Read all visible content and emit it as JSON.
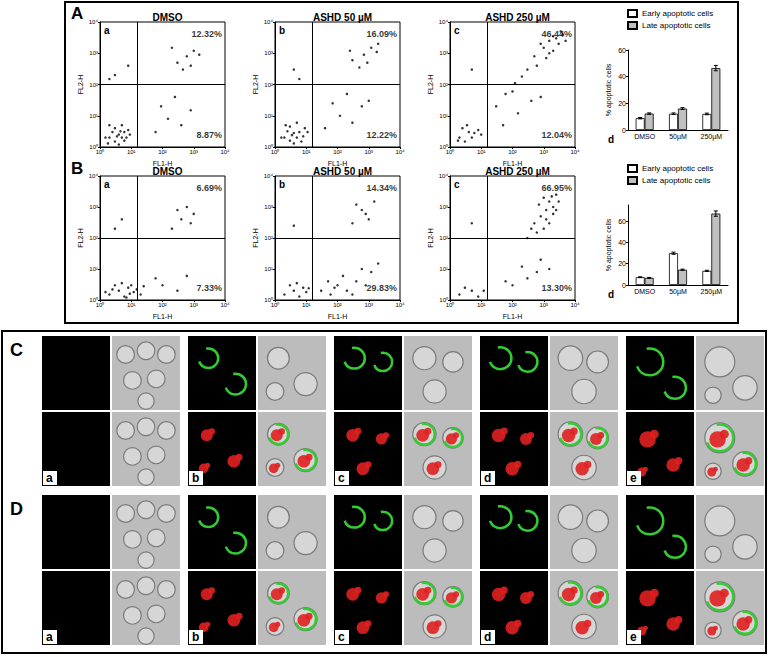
{
  "chart_data": [
    {
      "type": "scatter",
      "title": "DMSO",
      "panel_label": "a",
      "x_label": "FL1-H",
      "y_label": "FL2-H",
      "log": true,
      "xlim": [
        1,
        10000
      ],
      "ylim": [
        1,
        10000
      ],
      "xticks": [
        {
          "value": 1,
          "label": "10⁰"
        },
        {
          "value": 10,
          "label": "10¹"
        },
        {
          "value": 100,
          "label": "10²"
        },
        {
          "value": 1000,
          "label": "10³"
        },
        {
          "value": 10000,
          "label": "10⁴"
        }
      ],
      "yticks": [
        {
          "value": 1,
          "label": "10⁰"
        },
        {
          "value": 10,
          "label": "10¹"
        },
        {
          "value": 100,
          "label": "10²"
        },
        {
          "value": 1000,
          "label": "10³"
        },
        {
          "value": 10000,
          "label": "10⁴"
        }
      ],
      "gates": {
        "x": 15,
        "y": 100
      },
      "color": "#000000",
      "marker": "dot",
      "points": [
        [
          2,
          2
        ],
        [
          3,
          1.5
        ],
        [
          4,
          2.5
        ],
        [
          2.5,
          3
        ],
        [
          5,
          2
        ],
        [
          3,
          4
        ],
        [
          6,
          3
        ],
        [
          1.5,
          2
        ],
        [
          4,
          1.2
        ],
        [
          7,
          2
        ],
        [
          3.5,
          2.2
        ],
        [
          2,
          5
        ],
        [
          5,
          5
        ],
        [
          8,
          3.5
        ],
        [
          1.8,
          1.3
        ],
        [
          6,
          1.6
        ],
        [
          4.5,
          3.2
        ],
        [
          9,
          2.5
        ],
        [
          60,
          3
        ],
        [
          150,
          8
        ],
        [
          400,
          5
        ],
        [
          90,
          20
        ],
        [
          800,
          15
        ],
        [
          250,
          40
        ],
        [
          3,
          200
        ],
        [
          8,
          400
        ],
        [
          2,
          150
        ],
        [
          300,
          500
        ],
        [
          600,
          800
        ],
        [
          1000,
          1200
        ],
        [
          450,
          300
        ],
        [
          1500,
          900
        ],
        [
          200,
          1500
        ],
        [
          800,
          400
        ]
      ],
      "annotations": [
        {
          "text": "12.32%",
          "x": 8000,
          "y": 4000
        },
        {
          "text": "8.87%",
          "x": 8000,
          "y": 2.5
        }
      ]
    },
    {
      "type": "scatter",
      "title": "ASHD 50 µM",
      "panel_label": "b",
      "x_label": "FL1-H",
      "y_label": "FL2-H",
      "log": true,
      "xlim": [
        1,
        10000
      ],
      "ylim": [
        1,
        10000
      ],
      "xticks": [
        {
          "value": 1,
          "label": "10⁰"
        },
        {
          "value": 10,
          "label": "10¹"
        },
        {
          "value": 100,
          "label": "10²"
        },
        {
          "value": 1000,
          "label": "10³"
        },
        {
          "value": 10000,
          "label": "10⁴"
        }
      ],
      "yticks": [
        {
          "value": 1,
          "label": "10⁰"
        },
        {
          "value": 10,
          "label": "10¹"
        },
        {
          "value": 100,
          "label": "10²"
        },
        {
          "value": 1000,
          "label": "10³"
        },
        {
          "value": 10000,
          "label": "10⁴"
        }
      ],
      "gates": {
        "x": 15,
        "y": 100
      },
      "color": "#000000",
      "marker": "dot",
      "points": [
        [
          2,
          2
        ],
        [
          3,
          1.6
        ],
        [
          4,
          2.8
        ],
        [
          2.5,
          3.2
        ],
        [
          5,
          2
        ],
        [
          3,
          4.5
        ],
        [
          6,
          3
        ],
        [
          1.6,
          2
        ],
        [
          4,
          1.3
        ],
        [
          8,
          2.2
        ],
        [
          3.5,
          2.4
        ],
        [
          2.2,
          5
        ],
        [
          5,
          6
        ],
        [
          9,
          4
        ],
        [
          7,
          1.5
        ],
        [
          11,
          3
        ],
        [
          40,
          4
        ],
        [
          120,
          10
        ],
        [
          300,
          6
        ],
        [
          70,
          25
        ],
        [
          600,
          20
        ],
        [
          200,
          50
        ],
        [
          1000,
          30
        ],
        [
          4,
          300
        ],
        [
          6,
          150
        ],
        [
          300,
          600
        ],
        [
          700,
          900
        ],
        [
          1200,
          1500
        ],
        [
          500,
          350
        ],
        [
          1800,
          1100
        ],
        [
          250,
          1200
        ],
        [
          900,
          500
        ],
        [
          2000,
          2000
        ]
      ],
      "annotations": [
        {
          "text": "16.09%",
          "x": 8000,
          "y": 4000
        },
        {
          "text": "12.22%",
          "x": 8000,
          "y": 2.5
        }
      ]
    },
    {
      "type": "scatter",
      "title": "ASHD 250 µM",
      "panel_label": "c",
      "x_label": "FL1-H",
      "y_label": "FL2-H",
      "log": true,
      "xlim": [
        1,
        10000
      ],
      "ylim": [
        1,
        10000
      ],
      "xticks": [
        {
          "value": 1,
          "label": "10⁰"
        },
        {
          "value": 10,
          "label": "10¹"
        },
        {
          "value": 100,
          "label": "10²"
        },
        {
          "value": 1000,
          "label": "10³"
        },
        {
          "value": 10000,
          "label": "10⁴"
        }
      ],
      "yticks": [
        {
          "value": 1,
          "label": "10⁰"
        },
        {
          "value": 10,
          "label": "10¹"
        },
        {
          "value": 100,
          "label": "10²"
        },
        {
          "value": 1000,
          "label": "10³"
        },
        {
          "value": 10000,
          "label": "10⁴"
        }
      ],
      "gates": {
        "x": 15,
        "y": 100
      },
      "color": "#000000",
      "marker": "dot",
      "points": [
        [
          2,
          2
        ],
        [
          3,
          1.5
        ],
        [
          4,
          3
        ],
        [
          5,
          2
        ],
        [
          2.5,
          4
        ],
        [
          6,
          2.8
        ],
        [
          1.8,
          1.6
        ],
        [
          8,
          3.5
        ],
        [
          3.5,
          5
        ],
        [
          10,
          2.5
        ],
        [
          50,
          5
        ],
        [
          150,
          12
        ],
        [
          400,
          30
        ],
        [
          100,
          60
        ],
        [
          800,
          40
        ],
        [
          30,
          20
        ],
        [
          60,
          50
        ],
        [
          120,
          110
        ],
        [
          200,
          180
        ],
        [
          5,
          300
        ],
        [
          500,
          800
        ],
        [
          1000,
          1500
        ],
        [
          1500,
          2500
        ],
        [
          2500,
          3000
        ],
        [
          3000,
          2000
        ],
        [
          2000,
          1200
        ],
        [
          800,
          2000
        ],
        [
          4000,
          4000
        ],
        [
          1200,
          700
        ],
        [
          600,
          400
        ],
        [
          3500,
          5000
        ],
        [
          2000,
          3500
        ],
        [
          5000,
          2500
        ],
        [
          300,
          300
        ],
        [
          1500,
          1000
        ]
      ],
      "annotations": [
        {
          "text": "46.44%",
          "x": 8000,
          "y": 4000
        },
        {
          "text": "12.04%",
          "x": 8000,
          "y": 2.5
        }
      ]
    },
    {
      "type": "bar",
      "panel_label": "d",
      "y_label": "% apoptotic cells",
      "categories": [
        "DMSO",
        "50µM",
        "250µM"
      ],
      "series": [
        {
          "name": "Early apoptotic cells",
          "color": "#ffffff",
          "values": [
            8.87,
            12.22,
            12.04
          ],
          "errors": [
            0.5,
            0.6,
            0.6
          ]
        },
        {
          "name": "Late apoptotic cells",
          "color": "#c0c0c0",
          "values": [
            12.32,
            16.09,
            46.44
          ],
          "errors": [
            0.5,
            0.7,
            2.0
          ]
        }
      ],
      "ylim": [
        0,
        60
      ],
      "yticks": [
        0,
        20,
        40,
        60
      ],
      "legend": "top"
    },
    {
      "type": "scatter",
      "title": "DMSO",
      "panel_label": "a",
      "x_label": "FL1-H",
      "y_label": "FL2-H",
      "log": true,
      "xlim": [
        1,
        10000
      ],
      "ylim": [
        1,
        10000
      ],
      "xticks": [
        {
          "value": 1,
          "label": "10⁰"
        },
        {
          "value": 10,
          "label": "10¹"
        },
        {
          "value": 100,
          "label": "10²"
        },
        {
          "value": 1000,
          "label": "10³"
        },
        {
          "value": 10000,
          "label": "10⁴"
        }
      ],
      "yticks": [
        {
          "value": 1,
          "label": "10⁰"
        },
        {
          "value": 10,
          "label": "10¹"
        },
        {
          "value": 100,
          "label": "10²"
        },
        {
          "value": 1000,
          "label": "10³"
        },
        {
          "value": 10000,
          "label": "10⁴"
        }
      ],
      "gates": {
        "x": 15,
        "y": 100
      },
      "color": "#000000",
      "marker": "dot",
      "points": [
        [
          2,
          1.5
        ],
        [
          4,
          2
        ],
        [
          6,
          1.3
        ],
        [
          8,
          2.5
        ],
        [
          3,
          3
        ],
        [
          12,
          1.8
        ],
        [
          5,
          3.5
        ],
        [
          15,
          2.2
        ],
        [
          2.5,
          2.2
        ],
        [
          10,
          3
        ],
        [
          20,
          1.5
        ],
        [
          7,
          1.2
        ],
        [
          25,
          2.8
        ],
        [
          1.5,
          1.8
        ],
        [
          9,
          1.6
        ],
        [
          100,
          3
        ],
        [
          300,
          2
        ],
        [
          60,
          5
        ],
        [
          600,
          6
        ],
        [
          3,
          200
        ],
        [
          5,
          400
        ],
        [
          200,
          200
        ],
        [
          400,
          400
        ],
        [
          800,
          300
        ],
        [
          300,
          800
        ],
        [
          1000,
          600
        ],
        [
          600,
          1000
        ]
      ],
      "annotations": [
        {
          "text": "6.69%",
          "x": 8000,
          "y": 4000
        },
        {
          "text": "7.33%",
          "x": 8000,
          "y": 2.5
        }
      ]
    },
    {
      "type": "scatter",
      "title": "ASHD 50 µM",
      "panel_label": "b",
      "x_label": "FL1-H",
      "y_label": "FL2-H",
      "log": true,
      "xlim": [
        1,
        10000
      ],
      "ylim": [
        1,
        10000
      ],
      "xticks": [
        {
          "value": 1,
          "label": "10⁰"
        },
        {
          "value": 10,
          "label": "10¹"
        },
        {
          "value": 100,
          "label": "10²"
        },
        {
          "value": 1000,
          "label": "10³"
        },
        {
          "value": 10000,
          "label": "10⁴"
        }
      ],
      "yticks": [
        {
          "value": 1,
          "label": "10⁰"
        },
        {
          "value": 10,
          "label": "10¹"
        },
        {
          "value": 100,
          "label": "10²"
        },
        {
          "value": 1000,
          "label": "10³"
        },
        {
          "value": 10000,
          "label": "10⁴"
        }
      ],
      "gates": {
        "x": 15,
        "y": 100
      },
      "color": "#000000",
      "marker": "dot",
      "points": [
        [
          2,
          1.5
        ],
        [
          4,
          2
        ],
        [
          6,
          1.3
        ],
        [
          8,
          2.5
        ],
        [
          3,
          3
        ],
        [
          10,
          1.8
        ],
        [
          5,
          3.5
        ],
        [
          12,
          2.4
        ],
        [
          30,
          2
        ],
        [
          60,
          1.5
        ],
        [
          100,
          3
        ],
        [
          200,
          2
        ],
        [
          400,
          4
        ],
        [
          800,
          3
        ],
        [
          150,
          6
        ],
        [
          300,
          1.5
        ],
        [
          50,
          4
        ],
        [
          1200,
          8
        ],
        [
          600,
          10
        ],
        [
          80,
          2.5
        ],
        [
          2000,
          15
        ],
        [
          4,
          250
        ],
        [
          300,
          300
        ],
        [
          600,
          800
        ],
        [
          1000,
          400
        ],
        [
          400,
          1200
        ],
        [
          1500,
          1500
        ],
        [
          800,
          600
        ]
      ],
      "annotations": [
        {
          "text": "14.34%",
          "x": 8000,
          "y": 4000
        },
        {
          "text": "29.83%",
          "x": 8000,
          "y": 2.5
        }
      ]
    },
    {
      "type": "scatter",
      "title": "ASHD 250 µM",
      "panel_label": "c",
      "x_label": "FL1-H",
      "y_label": "FL2-H",
      "log": true,
      "xlim": [
        1,
        10000
      ],
      "ylim": [
        1,
        10000
      ],
      "xticks": [
        {
          "value": 1,
          "label": "10⁰"
        },
        {
          "value": 10,
          "label": "10¹"
        },
        {
          "value": 100,
          "label": "10²"
        },
        {
          "value": 1000,
          "label": "10³"
        },
        {
          "value": 10000,
          "label": "10⁴"
        }
      ],
      "yticks": [
        {
          "value": 1,
          "label": "10⁰"
        },
        {
          "value": 10,
          "label": "10¹"
        },
        {
          "value": 100,
          "label": "10²"
        },
        {
          "value": 1000,
          "label": "10³"
        },
        {
          "value": 10000,
          "label": "10⁴"
        }
      ],
      "gates": {
        "x": 15,
        "y": 100
      },
      "color": "#000000",
      "marker": "dot",
      "points": [
        [
          2,
          1.5
        ],
        [
          5,
          2
        ],
        [
          8,
          1.3
        ],
        [
          3,
          2.5
        ],
        [
          12,
          2
        ],
        [
          100,
          3
        ],
        [
          300,
          5
        ],
        [
          600,
          8
        ],
        [
          1500,
          10
        ],
        [
          200,
          12
        ],
        [
          800,
          20
        ],
        [
          60,
          4
        ],
        [
          300,
          100
        ],
        [
          600,
          150
        ],
        [
          1000,
          200
        ],
        [
          1500,
          300
        ],
        [
          800,
          500
        ],
        [
          1200,
          800
        ],
        [
          2000,
          1000
        ],
        [
          1500,
          1500
        ],
        [
          1000,
          2000
        ],
        [
          2500,
          2500
        ],
        [
          3000,
          1500
        ],
        [
          500,
          300
        ],
        [
          700,
          1200
        ],
        [
          2000,
          600
        ],
        [
          1800,
          2200
        ],
        [
          1200,
          400
        ],
        [
          400,
          200
        ],
        [
          2500,
          800
        ],
        [
          5,
          300
        ]
      ],
      "annotations": [
        {
          "text": "66.95%",
          "x": 8000,
          "y": 4000
        },
        {
          "text": "13.30%",
          "x": 8000,
          "y": 2.5
        }
      ]
    },
    {
      "type": "bar",
      "panel_label": "d",
      "y_label": "% apoptotic cells",
      "categories": [
        "DMSO",
        "50µM",
        "250µM"
      ],
      "series": [
        {
          "name": "Early apoptotic cells",
          "color": "#ffffff",
          "values": [
            7.33,
            29.83,
            13.3
          ],
          "errors": [
            0.4,
            1.0,
            0.5
          ]
        },
        {
          "name": "Late apoptotic cells",
          "color": "#c0c0c0",
          "values": [
            6.69,
            14.34,
            66.95
          ],
          "errors": [
            0.4,
            0.5,
            2.5
          ]
        }
      ],
      "ylim": [
        0,
        75
      ],
      "yticks": [
        0,
        20,
        40,
        60
      ],
      "legend": "top"
    }
  ],
  "figure": {
    "panel_letters": [
      "A",
      "B"
    ],
    "microscopy": [
      {
        "panel": "C",
        "subpanels": [
          "a",
          "b",
          "c",
          "d",
          "e"
        ]
      },
      {
        "panel": "D",
        "subpanels": [
          "a",
          "b",
          "c",
          "d",
          "e"
        ]
      }
    ]
  }
}
